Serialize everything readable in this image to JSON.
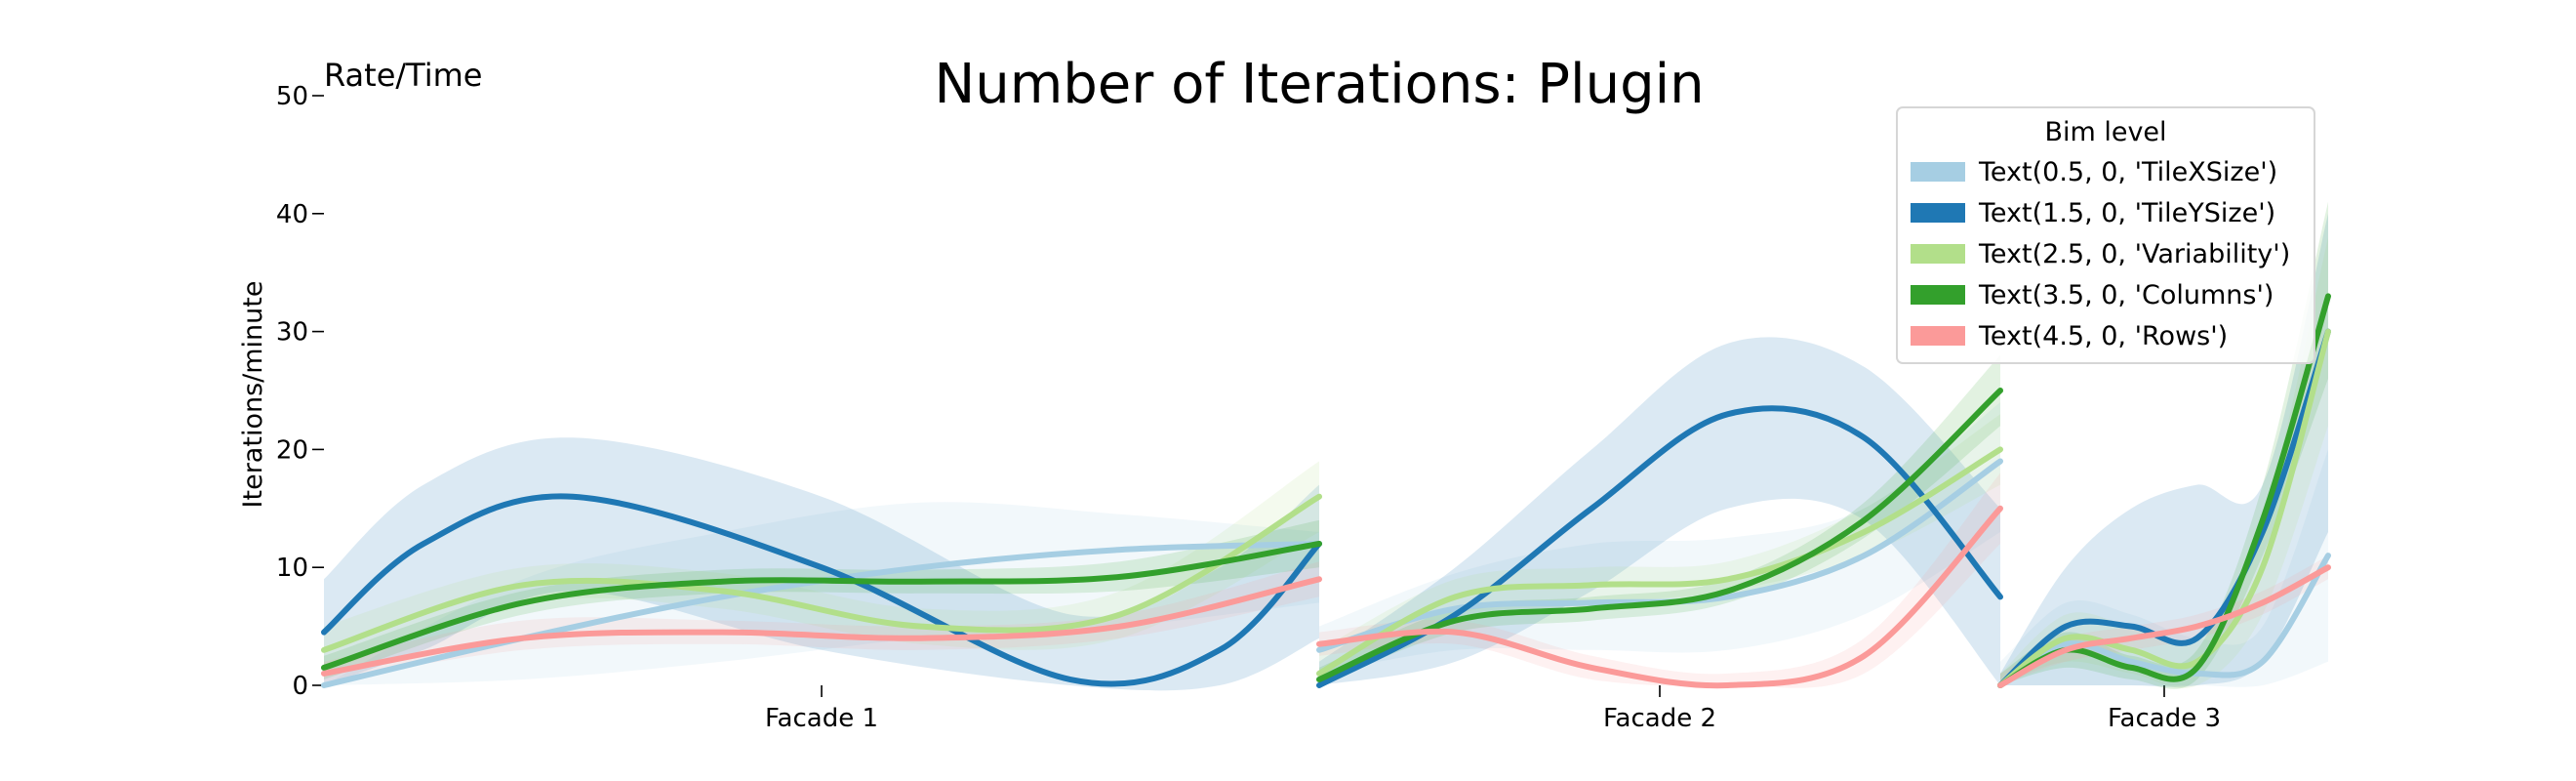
{
  "chart_data": {
    "type": "line",
    "title": "Number of Iterations: Plugin",
    "corner_label": "Rate/Time",
    "ylabel": "Iterations/minute",
    "xlabel": "",
    "ylim": [
      0,
      50
    ],
    "yticks": [
      0,
      10,
      20,
      30,
      40,
      50
    ],
    "grid": false,
    "legend": {
      "title": "Bim level",
      "placement": "top-right"
    },
    "facets": [
      {
        "label": "Facade 1",
        "x": [
          0.0,
          0.5,
          1.0
        ]
      },
      {
        "label": "Facade 2",
        "x": [
          0.0,
          0.5,
          1.0
        ]
      },
      {
        "label": "Facade 3",
        "x": [
          0.0,
          0.5,
          1.0
        ]
      }
    ],
    "series": [
      {
        "name": "Text(0.5, 0, 'TileXSize')",
        "color": "#a6cee3",
        "facets": [
          {
            "x": [
              0,
              0.2,
              0.4,
              0.6,
              0.8,
              1.0
            ],
            "y": [
              0,
              4,
              7.5,
              10,
              11.5,
              12
            ],
            "band": [
              [
                0,
                0
              ],
              [
                0.5,
                9
              ],
              [
                2,
                13
              ],
              [
                4,
                15.5
              ],
              [
                5,
                14.5
              ],
              [
                7,
                13
              ]
            ]
          },
          {
            "x": [
              0,
              0.2,
              0.4,
              0.6,
              0.8,
              1.0
            ],
            "y": [
              3,
              6.5,
              7,
              7.5,
              11,
              19
            ],
            "band": [
              [
                1,
                5
              ],
              [
                3,
                9.5
              ],
              [
                3,
                12
              ],
              [
                3,
                12.5
              ],
              [
                6,
                15
              ],
              [
                13,
                24
              ]
            ]
          },
          {
            "x": [
              0,
              0.2,
              0.4,
              0.6,
              0.8,
              1.0
            ],
            "y": [
              0,
              3.5,
              2,
              1,
              2,
              11
            ],
            "band": [
              [
                0,
                2
              ],
              [
                0,
                7
              ],
              [
                0,
                6
              ],
              [
                0,
                4
              ],
              [
                0,
                5
              ],
              [
                2,
                20
              ]
            ]
          }
        ]
      },
      {
        "name": "Text(1.5, 0, 'TileYSize')",
        "color": "#1f78b4",
        "facets": [
          {
            "x": [
              0,
              0.1,
              0.25,
              0.5,
              0.75,
              0.9,
              1.0
            ],
            "y": [
              4.5,
              12,
              16,
              10,
              0.5,
              3,
              12
            ],
            "band": [
              [
                0,
                9
              ],
              [
                3,
                17
              ],
              [
                8,
                21
              ],
              [
                3,
                16
              ],
              [
                0,
                6
              ],
              [
                0,
                10
              ],
              [
                4,
                17
              ]
            ]
          },
          {
            "x": [
              0,
              0.2,
              0.4,
              0.6,
              0.8,
              1.0
            ],
            "y": [
              -1,
              6,
              15,
              23,
              21,
              7.5
            ],
            "band": [
              [
                -3,
                2
              ],
              [
                2,
                10
              ],
              [
                8,
                20
              ],
              [
                15,
                29
              ],
              [
                14,
                27
              ],
              [
                0,
                15
              ]
            ]
          },
          {
            "x": [
              0,
              0.2,
              0.4,
              0.6,
              0.8,
              1.0
            ],
            "y": [
              0,
              5,
              5,
              4,
              13,
              30
            ],
            "band": [
              [
                0,
                1
              ],
              [
                0,
                10
              ],
              [
                0,
                15
              ],
              [
                0,
                17
              ],
              [
                2,
                17
              ],
              [
                13,
                40
              ]
            ]
          }
        ]
      },
      {
        "name": "Text(2.5, 0, 'Variability')",
        "color": "#b2df8a",
        "facets": [
          {
            "x": [
              0,
              0.2,
              0.4,
              0.6,
              0.8,
              1.0
            ],
            "y": [
              3,
              8.5,
              8,
              5,
              6,
              16
            ],
            "band": [
              [
                1,
                5
              ],
              [
                7,
                10
              ],
              [
                6.5,
                9.5
              ],
              [
                3.5,
                6.5
              ],
              [
                4,
                8
              ],
              [
                13,
                19
              ]
            ]
          },
          {
            "x": [
              0,
              0.2,
              0.4,
              0.6,
              0.8,
              1.0
            ],
            "y": [
              1,
              7.5,
              8.5,
              9,
              13,
              20
            ],
            "band": [
              [
                0,
                3
              ],
              [
                6,
                9
              ],
              [
                7,
                10
              ],
              [
                8,
                10.5
              ],
              [
                11,
                15
              ],
              [
                17,
                23
              ]
            ]
          },
          {
            "x": [
              0,
              0.2,
              0.4,
              0.6,
              0.8,
              1.0
            ],
            "y": [
              0,
              4,
              3,
              2,
              10,
              30
            ],
            "band": [
              [
                0,
                1
              ],
              [
                2,
                6
              ],
              [
                1,
                5
              ],
              [
                0,
                4
              ],
              [
                6,
                14
              ],
              [
                22,
                38
              ]
            ]
          }
        ]
      },
      {
        "name": "Text(3.5, 0, 'Columns')",
        "color": "#33a02c",
        "facets": [
          {
            "x": [
              0,
              0.2,
              0.4,
              0.6,
              0.8,
              1.0
            ],
            "y": [
              1.5,
              7,
              8.8,
              8.8,
              9.2,
              12
            ],
            "band": [
              [
                0.5,
                2.5
              ],
              [
                6,
                8
              ],
              [
                7.8,
                9.8
              ],
              [
                7.8,
                9.8
              ],
              [
                8,
                10.5
              ],
              [
                10,
                14
              ]
            ]
          },
          {
            "x": [
              0,
              0.2,
              0.4,
              0.6,
              0.8,
              1.0
            ],
            "y": [
              0.5,
              5.5,
              6.5,
              8,
              14,
              25
            ],
            "band": [
              [
                0,
                1.5
              ],
              [
                4.5,
                6.5
              ],
              [
                5.5,
                7.5
              ],
              [
                7,
                9
              ],
              [
                12.5,
                15.5
              ],
              [
                22,
                28
              ]
            ]
          },
          {
            "x": [
              0,
              0.2,
              0.4,
              0.6,
              0.8,
              1.0
            ],
            "y": [
              0,
              3,
              1.5,
              1.5,
              14,
              33
            ],
            "band": [
              [
                0,
                1
              ],
              [
                1.5,
                4.5
              ],
              [
                0.5,
                2.5
              ],
              [
                0.5,
                3
              ],
              [
                11,
                17
              ],
              [
                26,
                41
              ]
            ]
          }
        ]
      },
      {
        "name": "Text(4.5, 0, 'Rows')",
        "color": "#fb9a99",
        "facets": [
          {
            "x": [
              0,
              0.2,
              0.4,
              0.6,
              0.8,
              1.0
            ],
            "y": [
              1,
              4,
              4.5,
              4,
              5,
              9
            ],
            "band": [
              [
                0.3,
                2
              ],
              [
                3,
                5.5
              ],
              [
                3.5,
                5.5
              ],
              [
                3,
                5
              ],
              [
                4,
                6
              ],
              [
                7.5,
                10.5
              ]
            ]
          },
          {
            "x": [
              0,
              0.2,
              0.4,
              0.6,
              0.8,
              1.0
            ],
            "y": [
              3.5,
              4.5,
              1.5,
              0,
              2.5,
              15
            ],
            "band": [
              [
                2.5,
                4.5
              ],
              [
                3.5,
                5.5
              ],
              [
                0.5,
                2.5
              ],
              [
                -1,
                1
              ],
              [
                1,
                4
              ],
              [
                12,
                18
              ]
            ]
          },
          {
            "x": [
              0,
              0.2,
              0.4,
              0.6,
              0.8,
              1.0
            ],
            "y": [
              0,
              3,
              4,
              5,
              7,
              10
            ],
            "band": [
              [
                0,
                1
              ],
              [
                2,
                4
              ],
              [
                3,
                5
              ],
              [
                4,
                6
              ],
              [
                6,
                8
              ],
              [
                9,
                11
              ]
            ]
          }
        ]
      }
    ]
  }
}
